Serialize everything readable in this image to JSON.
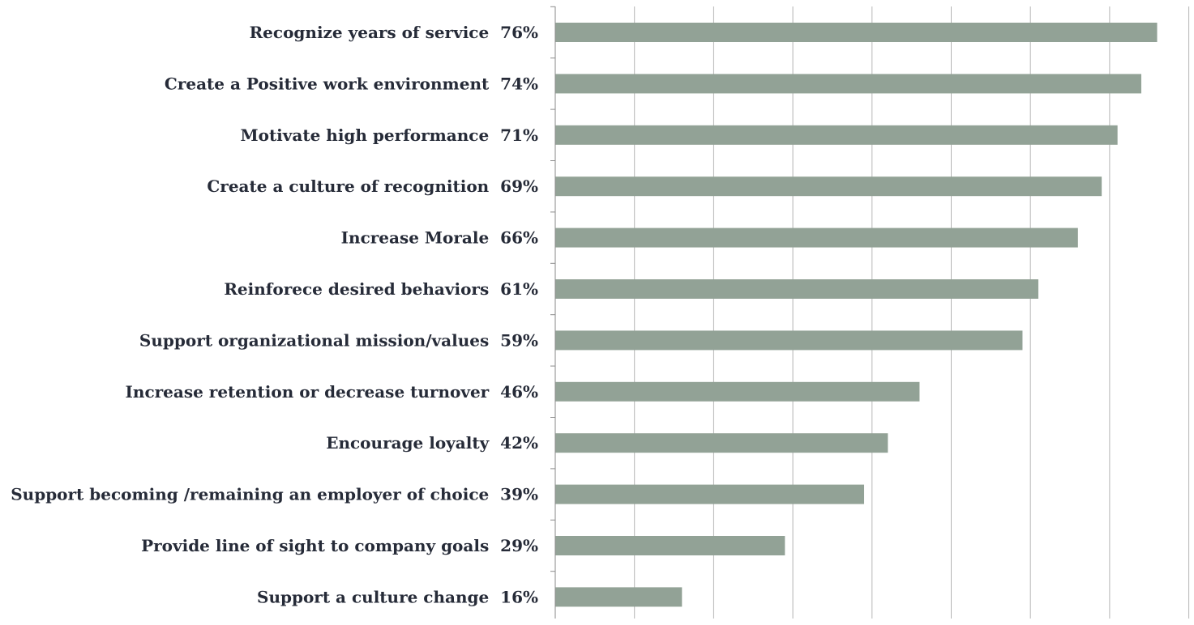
{
  "chart_data": {
    "type": "bar",
    "orientation": "horizontal",
    "categories": [
      "Recognize years of service",
      "Create a Positive work environment",
      "Motivate high performance",
      "Create a culture of recognition",
      "Increase Morale",
      "Reinforece desired behaviors",
      "Support organizational mission/values",
      "Increase retention or decrease turnover",
      "Encourage loyalty",
      "Support becoming /remaining an employer of choice",
      "Provide line of sight to company goals",
      "Support a culture change"
    ],
    "values": [
      76,
      74,
      71,
      69,
      66,
      61,
      59,
      46,
      42,
      39,
      29,
      16
    ],
    "value_labels": [
      "76%",
      "74%",
      "71%",
      "69%",
      "66%",
      "61%",
      "59%",
      "46%",
      "42%",
      "39%",
      "29%",
      "16%"
    ],
    "xlim": [
      0,
      80
    ],
    "x_gridline_step": 10,
    "grid": true,
    "legend": "none",
    "bar_color": "#92a296",
    "grid_color": "#b5b5b5",
    "text_color": "#262b38"
  }
}
